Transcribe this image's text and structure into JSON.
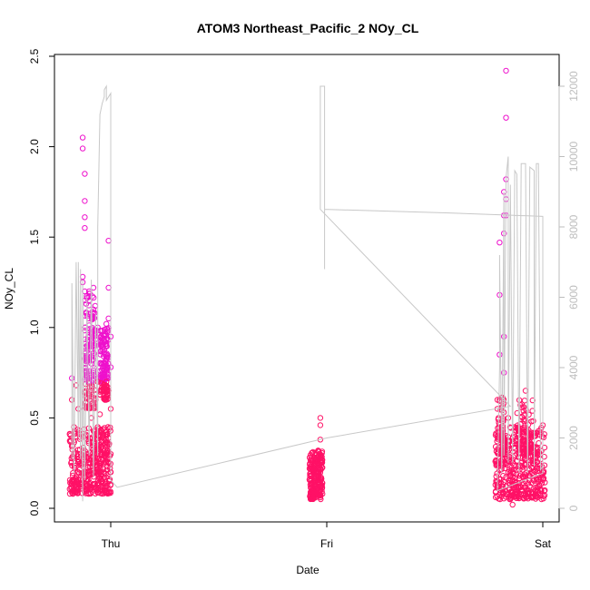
{
  "chart_data": {
    "type": "scatter",
    "title": "ATOM3 Northeast_Pacific_2 NOy_CL",
    "xlabel": "Date",
    "ylabel": "NOy_CL",
    "x_ticks": [
      "Thu",
      "Fri",
      "Sat"
    ],
    "ylim": [
      0,
      2.5
    ],
    "y_ticks": [
      "0.0",
      "0.5",
      "1.0",
      "1.5",
      "2.0",
      "2.5"
    ],
    "y2lim": [
      0,
      12000
    ],
    "y2_ticks": [
      "0",
      "2000",
      "4000",
      "6000",
      "8000",
      "10000",
      "12000"
    ],
    "grid": false,
    "colors": {
      "points_high": "#ee11cc",
      "points_low": "#ff1166",
      "altitude_line": "#c8c8c8"
    },
    "series": [
      {
        "type": "scatter",
        "axis": "left",
        "points": [
          [
            -0.18,
            0.72
          ],
          [
            -0.18,
            0.6
          ],
          [
            -0.17,
            0.45
          ],
          [
            -0.17,
            0.3
          ],
          [
            -0.16,
            0.15
          ],
          [
            -0.16,
            0.68
          ],
          [
            -0.15,
            0.2
          ],
          [
            -0.15,
            0.55
          ],
          [
            -0.14,
            0.25
          ],
          [
            -0.14,
            0.12
          ],
          [
            -0.13,
            1.25
          ],
          [
            -0.13,
            1.28
          ],
          [
            -0.13,
            2.05
          ],
          [
            -0.13,
            1.99
          ],
          [
            -0.12,
            1.85
          ],
          [
            -0.12,
            1.7
          ],
          [
            -0.12,
            1.61
          ],
          [
            -0.12,
            1.55
          ],
          [
            -0.12,
            1.2
          ],
          [
            -0.12,
            1.0
          ],
          [
            -0.11,
            0.9
          ],
          [
            -0.11,
            0.4
          ],
          [
            -0.11,
            0.3
          ],
          [
            -0.1,
            1.2
          ],
          [
            -0.1,
            1.15
          ],
          [
            -0.1,
            1.05
          ],
          [
            -0.1,
            0.95
          ],
          [
            -0.1,
            0.85
          ],
          [
            -0.09,
            0.8
          ],
          [
            -0.09,
            0.5
          ],
          [
            -0.09,
            0.35
          ],
          [
            -0.08,
            1.22
          ],
          [
            -0.08,
            1.1
          ],
          [
            -0.08,
            0.75
          ],
          [
            -0.08,
            0.25
          ],
          [
            -0.07,
            0.9
          ],
          [
            -0.07,
            0.6
          ],
          [
            -0.07,
            0.3
          ],
          [
            -0.06,
            0.7
          ],
          [
            -0.06,
            0.45
          ],
          [
            -0.05,
            0.52
          ],
          [
            -0.05,
            0.2
          ],
          [
            -0.04,
            0.3
          ],
          [
            -0.04,
            0.15
          ],
          [
            -0.03,
            0.25
          ],
          [
            -0.03,
            0.1
          ],
          [
            -0.02,
            0.7
          ],
          [
            -0.02,
            0.85
          ],
          [
            -0.02,
            1.02
          ],
          [
            -0.02,
            0.9
          ],
          [
            -0.01,
            1.05
          ],
          [
            -0.01,
            0.8
          ],
          [
            -0.01,
            0.65
          ],
          [
            -0.01,
            1.48
          ],
          [
            -0.01,
            1.22
          ],
          [
            0.0,
            0.95
          ],
          [
            0.0,
            0.78
          ],
          [
            0.0,
            0.55
          ],
          [
            0.0,
            0.3
          ],
          [
            0.0,
            0.2
          ],
          [
            -0.05,
            0.8
          ],
          [
            -0.04,
            0.92
          ],
          [
            -0.06,
            1.0
          ],
          [
            -0.03,
            0.65
          ],
          [
            0.97,
            0.5
          ],
          [
            0.97,
            0.46
          ],
          [
            0.97,
            0.38
          ],
          [
            0.96,
            0.32
          ],
          [
            0.96,
            0.25
          ],
          [
            0.95,
            0.2
          ],
          [
            0.95,
            0.15
          ],
          [
            0.94,
            0.1
          ],
          [
            0.94,
            0.28
          ],
          [
            0.93,
            0.18
          ],
          [
            0.93,
            0.12
          ],
          [
            0.92,
            0.22
          ],
          [
            0.92,
            0.16
          ],
          [
            0.98,
            0.08
          ],
          [
            0.98,
            0.14
          ],
          [
            0.97,
            0.06
          ],
          [
            1.79,
            0.55
          ],
          [
            1.79,
            0.6
          ],
          [
            1.8,
            0.85
          ],
          [
            1.8,
            1.47
          ],
          [
            1.8,
            1.18
          ],
          [
            1.81,
            0.4
          ],
          [
            1.81,
            0.3
          ],
          [
            1.82,
            1.75
          ],
          [
            1.82,
            1.62
          ],
          [
            1.82,
            1.52
          ],
          [
            1.82,
            0.95
          ],
          [
            1.82,
            0.75
          ],
          [
            1.83,
            2.42
          ],
          [
            1.83,
            2.16
          ],
          [
            1.83,
            1.82
          ],
          [
            1.83,
            1.71
          ],
          [
            1.83,
            1.62
          ],
          [
            1.84,
            0.5
          ],
          [
            1.84,
            0.2
          ],
          [
            1.85,
            0.35
          ],
          [
            1.86,
            0.25
          ],
          [
            1.87,
            0.45
          ],
          [
            1.88,
            0.3
          ],
          [
            1.9,
            0.25
          ],
          [
            1.92,
            0.65
          ],
          [
            1.94,
            0.35
          ],
          [
            1.96,
            0.4
          ],
          [
            1.98,
            0.3
          ],
          [
            2.0,
            0.2
          ],
          [
            2.0,
            0.46
          ],
          [
            1.85,
            0.05
          ],
          [
            1.86,
            0.02
          ]
        ]
      }
    ]
  }
}
